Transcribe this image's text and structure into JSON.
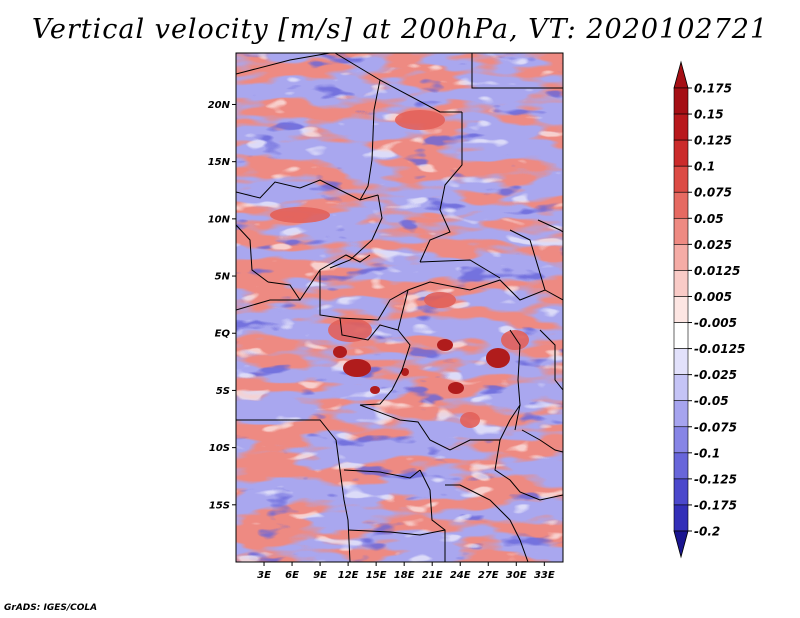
{
  "title": "Vertical velocity [m/s] at 200hPa, VT: 2020102721",
  "credit": "GrADS: IGES/COLA",
  "map": {
    "lon_range": [
      0,
      35
    ],
    "lat_range": [
      -20,
      24.5
    ],
    "lon_ticks": [
      {
        "value": 3,
        "label": "3E"
      },
      {
        "value": 6,
        "label": "6E"
      },
      {
        "value": 9,
        "label": "9E"
      },
      {
        "value": 12,
        "label": "12E"
      },
      {
        "value": 15,
        "label": "15E"
      },
      {
        "value": 18,
        "label": "18E"
      },
      {
        "value": 21,
        "label": "21E"
      },
      {
        "value": 24,
        "label": "24E"
      },
      {
        "value": 27,
        "label": "27E"
      },
      {
        "value": 30,
        "label": "30E"
      },
      {
        "value": 33,
        "label": "33E"
      }
    ],
    "lat_ticks": [
      {
        "value": 20,
        "label": "20N"
      },
      {
        "value": 15,
        "label": "15N"
      },
      {
        "value": 10,
        "label": "10N"
      },
      {
        "value": 5,
        "label": "5N"
      },
      {
        "value": 0,
        "label": "EQ"
      },
      {
        "value": -5,
        "label": "5S"
      },
      {
        "value": -10,
        "label": "10S"
      },
      {
        "value": -15,
        "label": "15S"
      }
    ]
  },
  "colorbar": {
    "levels": [
      {
        "label": "0.175",
        "color": "#a50f15"
      },
      {
        "label": "0.15",
        "color": "#b8181c"
      },
      {
        "label": "0.125",
        "color": "#cb2b2b"
      },
      {
        "label": "0.1",
        "color": "#dc4b45"
      },
      {
        "label": "0.075",
        "color": "#e66a62"
      },
      {
        "label": "0.05",
        "color": "#ee8a82"
      },
      {
        "label": "0.025",
        "color": "#f5aca6"
      },
      {
        "label": "0.0125",
        "color": "#f9cbc7"
      },
      {
        "label": "0.005",
        "color": "#fde6e3"
      },
      {
        "label": "-0.005",
        "color": "#ffffff"
      },
      {
        "label": "-0.0125",
        "color": "#e2e1fb"
      },
      {
        "label": "-0.025",
        "color": "#c5c4f6"
      },
      {
        "label": "-0.05",
        "color": "#a6a4ef"
      },
      {
        "label": "-0.075",
        "color": "#8785e6"
      },
      {
        "label": "-0.1",
        "color": "#6866da"
      },
      {
        "label": "-0.125",
        "color": "#4b48cc"
      },
      {
        "label": "-0.175",
        "color": "#332fb8"
      },
      {
        "label": "-0.2",
        "color": "#1f1a9e"
      }
    ],
    "over_color": "#a50f15",
    "under_color": "#1a1590"
  }
}
